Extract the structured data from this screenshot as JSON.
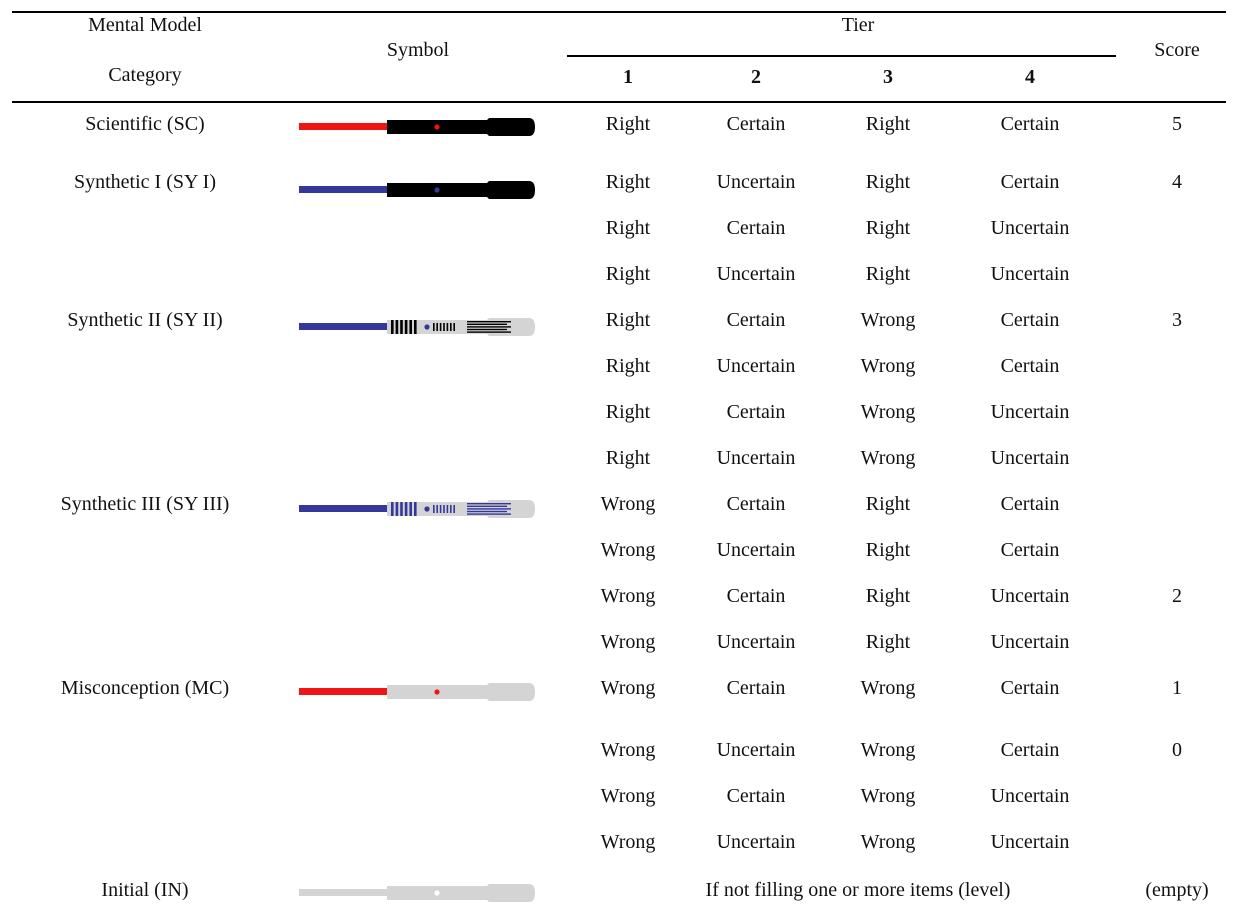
{
  "header": {
    "category_line1": "Mental Model",
    "category_line2": "Category",
    "symbol": "Symbol",
    "tier": "Tier",
    "tiers": [
      "1",
      "2",
      "3",
      "4"
    ],
    "score": "Score"
  },
  "colors": {
    "red": "#f01414",
    "blue": "#34389a",
    "black": "#000000",
    "grey": "#d4d4d4"
  },
  "rows": [
    {
      "category": "Scientific (SC)",
      "symbol": "saber-red-black",
      "cells": [
        "Right",
        "Certain",
        "Right",
        "Certain"
      ],
      "score": "5"
    },
    {
      "category": "Synthetic I (SY I)",
      "symbol": "saber-blue-black",
      "cells": [
        "Right",
        "Uncertain",
        "Right",
        "Certain"
      ],
      "score": "4"
    },
    {
      "category": "",
      "symbol": "",
      "cells": [
        "Right",
        "Certain",
        "Right",
        "Uncertain"
      ],
      "score": ""
    },
    {
      "category": "",
      "symbol": "",
      "cells": [
        "Right",
        "Uncertain",
        "Right",
        "Uncertain"
      ],
      "score": ""
    },
    {
      "category": "Synthetic II (SY II)",
      "symbol": "saber-blue-striped-black",
      "cells": [
        "Right",
        "Certain",
        "Wrong",
        "Certain"
      ],
      "score": "3"
    },
    {
      "category": "",
      "symbol": "",
      "cells": [
        "Right",
        "Uncertain",
        "Wrong",
        "Certain"
      ],
      "score": ""
    },
    {
      "category": "",
      "symbol": "",
      "cells": [
        "Right",
        "Certain",
        "Wrong",
        "Uncertain"
      ],
      "score": ""
    },
    {
      "category": "",
      "symbol": "",
      "cells": [
        "Right",
        "Uncertain",
        "Wrong",
        "Uncertain"
      ],
      "score": ""
    },
    {
      "category": "Synthetic III (SY III)",
      "symbol": "saber-blue-striped-blue",
      "cells": [
        "Wrong",
        "Certain",
        "Right",
        "Certain"
      ],
      "score": ""
    },
    {
      "category": "",
      "symbol": "",
      "cells": [
        "Wrong",
        "Uncertain",
        "Right",
        "Certain"
      ],
      "score": ""
    },
    {
      "category": "",
      "symbol": "",
      "cells": [
        "Wrong",
        "Certain",
        "Right",
        "Uncertain"
      ],
      "score": "2"
    },
    {
      "category": "",
      "symbol": "",
      "cells": [
        "Wrong",
        "Uncertain",
        "Right",
        "Uncertain"
      ],
      "score": ""
    },
    {
      "category": "Misconception (MC)",
      "symbol": "saber-red-grey",
      "cells": [
        "Wrong",
        "Certain",
        "Wrong",
        "Certain"
      ],
      "score": "1"
    },
    {
      "category": "",
      "symbol": "",
      "cells": [
        "Wrong",
        "Uncertain",
        "Wrong",
        "Certain"
      ],
      "score": "0"
    },
    {
      "category": "",
      "symbol": "",
      "cells": [
        "Wrong",
        "Certain",
        "Wrong",
        "Uncertain"
      ],
      "score": ""
    },
    {
      "category": "",
      "symbol": "",
      "cells": [
        "Wrong",
        "Uncertain",
        "Wrong",
        "Uncertain"
      ],
      "score": ""
    }
  ],
  "initial_row": {
    "category": "Initial (IN)",
    "symbol": "saber-grey",
    "note": "If not filling one or more items (level)",
    "score": "(empty)"
  }
}
